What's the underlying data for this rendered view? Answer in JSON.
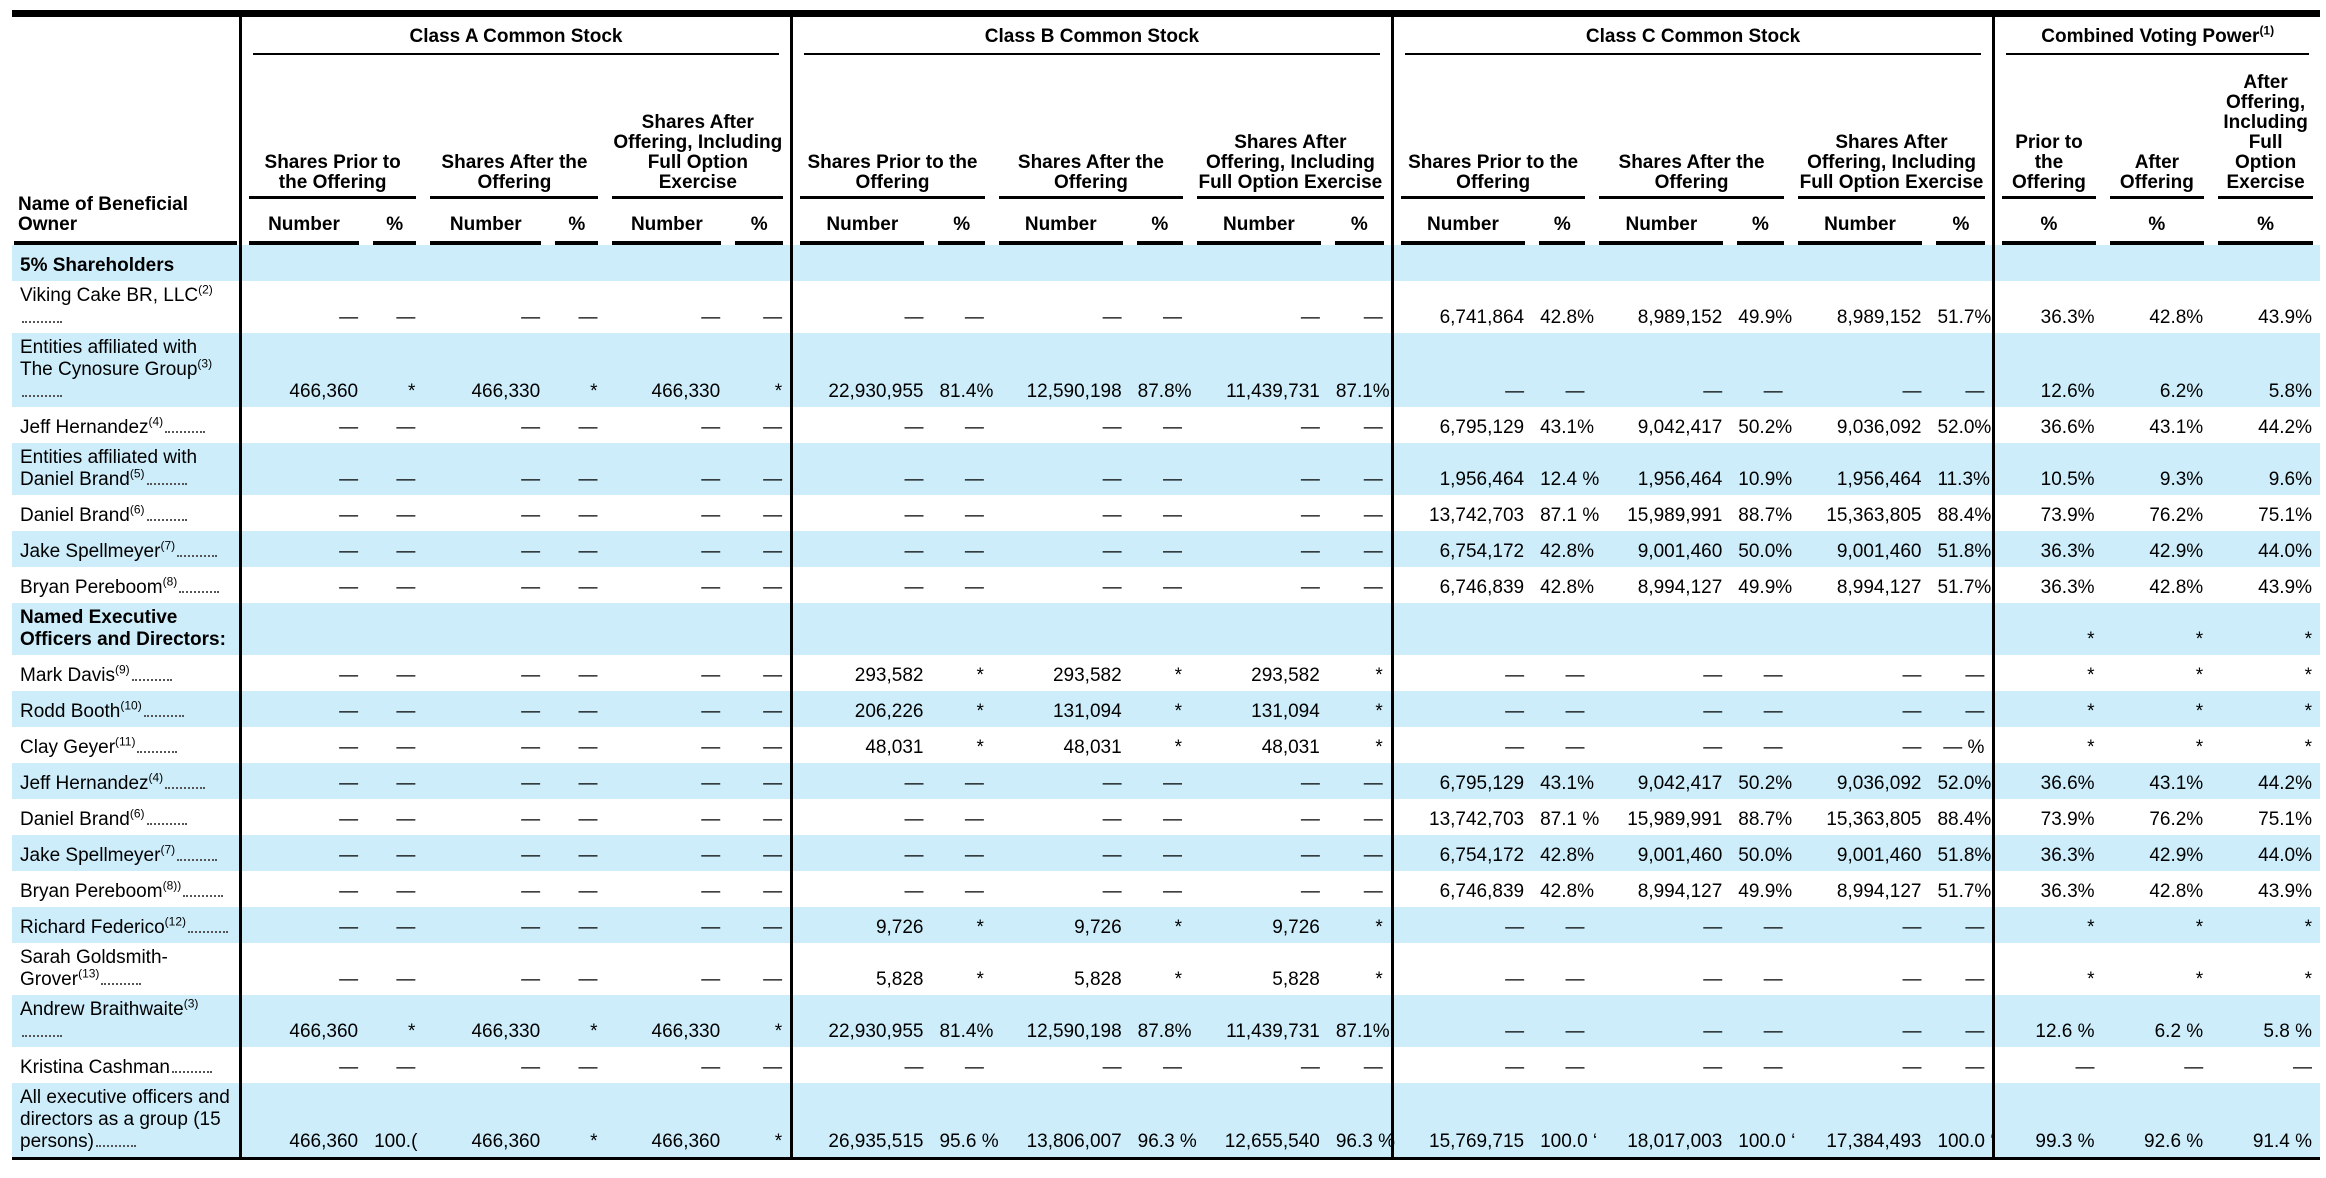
{
  "header": {
    "name_label": "Name of Beneficial Owner",
    "groups": [
      {
        "title": "Class A Common Stock",
        "subheaders": [
          "Shares Prior to the Offering",
          "Shares After the Offering",
          "Shares After Offering, Including Full Option Exercise"
        ],
        "columns": [
          "Number",
          "%",
          "Number",
          "%",
          "Number",
          "%"
        ]
      },
      {
        "title": "Class B Common Stock",
        "subheaders": [
          "Shares Prior to the Offering",
          "Shares After the Offering",
          "Shares After Offering, Including Full Option Exercise"
        ],
        "columns": [
          "Number",
          "%",
          "Number",
          "%",
          "Number",
          "%"
        ]
      },
      {
        "title": "Class C Common Stock",
        "subheaders": [
          "Shares Prior to the Offering",
          "Shares After the Offering",
          "Shares After Offering, Including Full Option Exercise"
        ],
        "columns": [
          "Number",
          "%",
          "Number",
          "%",
          "Number",
          "%"
        ]
      },
      {
        "title": "Combined Voting Power",
        "note": "(1)",
        "subheaders": [
          "Prior to the Offering",
          "After Offering",
          "After Offering, Including Full Option Exercise"
        ],
        "columns": [
          "%",
          "%",
          "%"
        ]
      }
    ]
  },
  "table": {
    "rows": [
      {
        "section": "5% Shareholders"
      },
      {
        "name": "Viking Cake BR, LLC",
        "note": "(2)",
        "cells": [
          "—",
          "—",
          "—",
          "—",
          "—",
          "—",
          "—",
          "—",
          "—",
          "—",
          "—",
          "—",
          "6,741,864",
          "42.8%",
          "8,989,152",
          "49.9%",
          "8,989,152",
          "51.7%",
          "36.3%",
          "42.8%",
          "43.9%"
        ]
      },
      {
        "name": "Entities affiliated with The Cynosure Group",
        "note": "(3)",
        "cells": [
          "466,360",
          "*",
          "466,330",
          "*",
          "466,330",
          "*",
          "22,930,955",
          "81.4%",
          "12,590,198",
          "87.8%",
          "11,439,731",
          "87.1%",
          "—",
          "—",
          "—",
          "—",
          "—",
          "—",
          "12.6%",
          "6.2%",
          "5.8%"
        ]
      },
      {
        "name": "Jeff Hernandez",
        "note": "(4)",
        "cells": [
          "—",
          "—",
          "—",
          "—",
          "—",
          "—",
          "—",
          "—",
          "—",
          "—",
          "—",
          "—",
          "6,795,129",
          "43.1%",
          "9,042,417",
          "50.2%",
          "9,036,092",
          "52.0%",
          "36.6%",
          "43.1%",
          "44.2%"
        ]
      },
      {
        "name": "Entities affiliated with Daniel Brand",
        "note": "(5)",
        "cells": [
          "—",
          "—",
          "—",
          "—",
          "—",
          "—",
          "—",
          "—",
          "—",
          "—",
          "—",
          "—",
          "1,956,464",
          "12.4 %",
          "1,956,464",
          "10.9%",
          "1,956,464",
          "11.3%",
          "10.5%",
          "9.3%",
          "9.6%"
        ]
      },
      {
        "name": "Daniel Brand",
        "note": "(6)",
        "cells": [
          "—",
          "—",
          "—",
          "—",
          "—",
          "—",
          "—",
          "—",
          "—",
          "—",
          "—",
          "—",
          "13,742,703",
          "87.1 %",
          "15,989,991",
          "88.7%",
          "15,363,805",
          "88.4%",
          "73.9%",
          "76.2%",
          "75.1%"
        ]
      },
      {
        "name": "Jake Spellmeyer",
        "note": "(7)",
        "cells": [
          "—",
          "—",
          "—",
          "—",
          "—",
          "—",
          "—",
          "—",
          "—",
          "—",
          "—",
          "—",
          "6,754,172",
          "42.8%",
          "9,001,460",
          "50.0%",
          "9,001,460",
          "51.8%",
          "36.3%",
          "42.9%",
          "44.0%"
        ]
      },
      {
        "name": "Bryan Pereboom",
        "note": "(8)",
        "cells": [
          "—",
          "—",
          "—",
          "—",
          "—",
          "—",
          "—",
          "—",
          "—",
          "—",
          "—",
          "—",
          "6,746,839",
          "42.8%",
          "8,994,127",
          "49.9%",
          "8,994,127",
          "51.7%",
          "36.3%",
          "42.8%",
          "43.9%"
        ]
      },
      {
        "section": "Named Executive Officers and Directors:",
        "cells": [
          null,
          null,
          null,
          null,
          null,
          null,
          null,
          null,
          null,
          null,
          null,
          null,
          null,
          null,
          null,
          null,
          null,
          null,
          "*",
          "*",
          "*"
        ]
      },
      {
        "name": "Mark Davis",
        "note": "(9)",
        "cells": [
          "—",
          "—",
          "—",
          "—",
          "—",
          "—",
          "293,582",
          "*",
          "293,582",
          "*",
          "293,582",
          "*",
          "—",
          "—",
          "—",
          "—",
          "—",
          "—",
          "*",
          "*",
          "*"
        ]
      },
      {
        "name": "Rodd Booth",
        "note": "(10)",
        "cells": [
          "—",
          "—",
          "—",
          "—",
          "—",
          "—",
          "206,226",
          "*",
          "131,094",
          "*",
          "131,094",
          "*",
          "—",
          "—",
          "—",
          "—",
          "—",
          "—",
          "*",
          "*",
          "*"
        ]
      },
      {
        "name": "Clay Geyer",
        "note": "(11)",
        "cells": [
          "—",
          "—",
          "—",
          "—",
          "—",
          "—",
          "48,031",
          "*",
          "48,031",
          "*",
          "48,031",
          "*",
          "—",
          "—",
          "—",
          "—",
          "—",
          "— %",
          "*",
          "*",
          "*"
        ]
      },
      {
        "name": "Jeff Hernandez",
        "note": "(4)",
        "cells": [
          "—",
          "—",
          "—",
          "—",
          "—",
          "—",
          "—",
          "—",
          "—",
          "—",
          "—",
          "—",
          "6,795,129",
          "43.1%",
          "9,042,417",
          "50.2%",
          "9,036,092",
          "52.0%",
          "36.6%",
          "43.1%",
          "44.2%"
        ]
      },
      {
        "name": "Daniel Brand",
        "note": "(6)",
        "cells": [
          "—",
          "—",
          "—",
          "—",
          "—",
          "—",
          "—",
          "—",
          "—",
          "—",
          "—",
          "—",
          "13,742,703",
          "87.1 %",
          "15,989,991",
          "88.7%",
          "15,363,805",
          "88.4%",
          "73.9%",
          "76.2%",
          "75.1%"
        ]
      },
      {
        "name": "Jake Spellmeyer",
        "note": "(7)",
        "cells": [
          "—",
          "—",
          "—",
          "—",
          "—",
          "—",
          "—",
          "—",
          "—",
          "—",
          "—",
          "—",
          "6,754,172",
          "42.8%",
          "9,001,460",
          "50.0%",
          "9,001,460",
          "51.8%",
          "36.3%",
          "42.9%",
          "44.0%"
        ]
      },
      {
        "name": "Bryan Pereboom",
        "note": "(8))",
        "cells": [
          "—",
          "—",
          "—",
          "—",
          "—",
          "—",
          "—",
          "—",
          "—",
          "—",
          "—",
          "—",
          "6,746,839",
          "42.8%",
          "8,994,127",
          "49.9%",
          "8,994,127",
          "51.7%",
          "36.3%",
          "42.8%",
          "43.9%"
        ]
      },
      {
        "name": "Richard Federico",
        "note": "(12)",
        "cells": [
          "—",
          "—",
          "—",
          "—",
          "—",
          "—",
          "9,726",
          "*",
          "9,726",
          "*",
          "9,726",
          "*",
          "—",
          "—",
          "—",
          "—",
          "—",
          "—",
          "*",
          "*",
          "*"
        ]
      },
      {
        "name": "Sarah Goldsmith-Grover",
        "note": "(13)",
        "cells": [
          "—",
          "—",
          "—",
          "—",
          "—",
          "—",
          "5,828",
          "*",
          "5,828",
          "*",
          "5,828",
          "*",
          "—",
          "—",
          "—",
          "—",
          "—",
          "—",
          "*",
          "*",
          "*"
        ]
      },
      {
        "name": "Andrew Braithwaite",
        "note": "(3)",
        "cells": [
          "466,360",
          "*",
          "466,330",
          "*",
          "466,330",
          "*",
          "22,930,955",
          "81.4%",
          "12,590,198",
          "87.8%",
          "11,439,731",
          "87.1%",
          "—",
          "—",
          "—",
          "—",
          "—",
          "—",
          "12.6 %",
          "6.2 %",
          "5.8 %"
        ]
      },
      {
        "name": "Kristina Cashman",
        "cells": [
          "—",
          "—",
          "—",
          "—",
          "—",
          "—",
          "—",
          "—",
          "—",
          "—",
          "—",
          "—",
          "—",
          "—",
          "—",
          "—",
          "—",
          "—",
          "—",
          "—",
          "—"
        ]
      },
      {
        "name": "All executive officers and directors as a group (15 persons)",
        "cells": [
          "466,360",
          "100.(",
          "466,360",
          "*",
          "466,360",
          "*",
          "26,935,515",
          "95.6 %",
          "13,806,007",
          "96.3 %",
          "12,655,540",
          "96.3 %",
          "15,769,715",
          "100.0 ‘",
          "18,017,003",
          "100.0 ‘",
          "17,384,493",
          "100.0 ‘",
          "99.3 %",
          "92.6 %",
          "91.4 %"
        ]
      }
    ]
  }
}
